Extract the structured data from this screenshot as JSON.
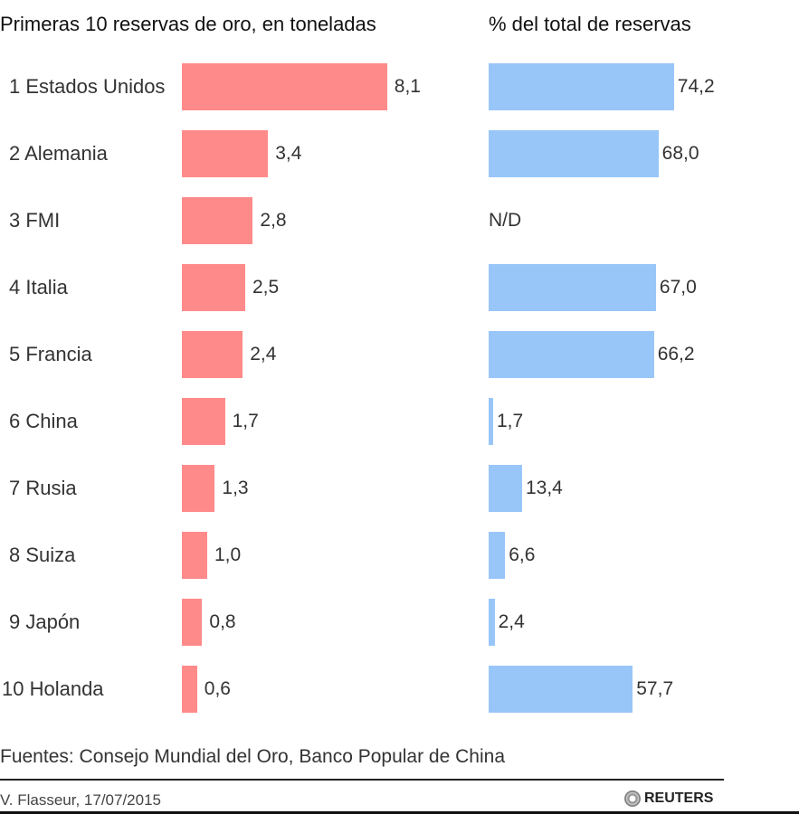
{
  "chart_data": [
    {
      "type": "bar",
      "orientation": "horizontal",
      "title": "Primeras 10 reservas de oro, en toneladas",
      "categories": [
        "1 Estados Unidos",
        "2 Alemania",
        "3 FMI",
        "4 Italia",
        "5 Francia",
        "6 China",
        "7 Rusia",
        "8 Suiza",
        "9 Japón",
        "10 Holanda"
      ],
      "values": [
        8.1,
        3.4,
        2.8,
        2.5,
        2.4,
        1.7,
        1.3,
        1.0,
        0.8,
        0.6
      ],
      "value_labels": [
        "8,1",
        "3,4",
        "2,8",
        "2,5",
        "2,4",
        "1,7",
        "1,3",
        "1,0",
        "0,8",
        "0,6"
      ],
      "color": "#FF8A8A"
    },
    {
      "type": "bar",
      "orientation": "horizontal",
      "title": "% del total de reservas",
      "categories": [
        "1 Estados Unidos",
        "2 Alemania",
        "3 FMI",
        "4 Italia",
        "5 Francia",
        "6 China",
        "7 Rusia",
        "8 Suiza",
        "9 Japón",
        "10 Holanda"
      ],
      "values": [
        74.2,
        68.0,
        null,
        67.0,
        66.2,
        1.7,
        13.4,
        6.6,
        2.4,
        57.7
      ],
      "value_labels": [
        "74,2",
        "68,0",
        "N/D",
        "67,0",
        "66,2",
        "1,7",
        "13,4",
        "6,6",
        "2,4",
        "57,7"
      ],
      "color": "#99C6F8"
    }
  ],
  "footer": {
    "sources": "Fuentes: Consejo Mundial del Oro, Banco Popular de China",
    "credit": "V. Flasseur, 17/07/2015",
    "logo": "REUTERS"
  }
}
